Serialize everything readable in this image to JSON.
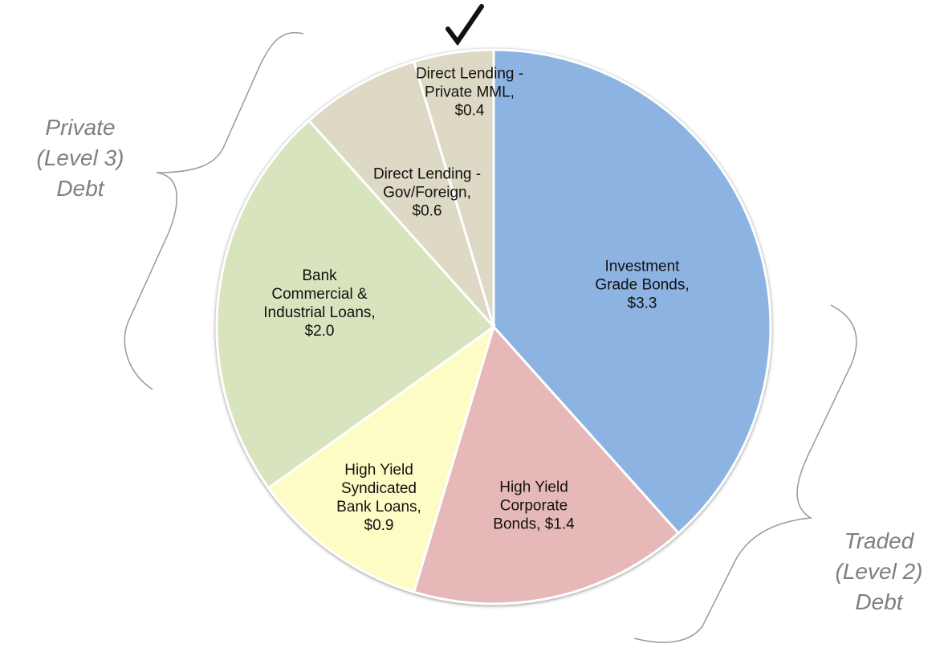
{
  "chart_data": {
    "type": "pie",
    "categories": [
      "Investment Grade Bonds,",
      "High Yield Corporate Bonds,",
      "High Yield Syndicated Bank Loans,",
      "Bank Commercial & Industrial Loans,",
      "Direct Lending - Gov/Foreign,",
      "Direct Lending - Private MML,"
    ],
    "values": [
      3.3,
      1.4,
      0.9,
      2.0,
      0.6,
      0.4
    ],
    "value_labels": [
      "$3.3",
      "$1.4",
      "$0.9",
      "$2.0",
      "$0.6",
      "$0.4"
    ],
    "colors": [
      "#8db3e2",
      "#e6b9b8",
      "#fdfcc5",
      "#d7e4bd",
      "#ddd9c4",
      "#ddd9c4"
    ],
    "annotations": [
      [
        "Private",
        "(Level 3)",
        "Debt"
      ],
      [
        "Traded",
        "(Level 2)",
        "Debt"
      ]
    ]
  }
}
